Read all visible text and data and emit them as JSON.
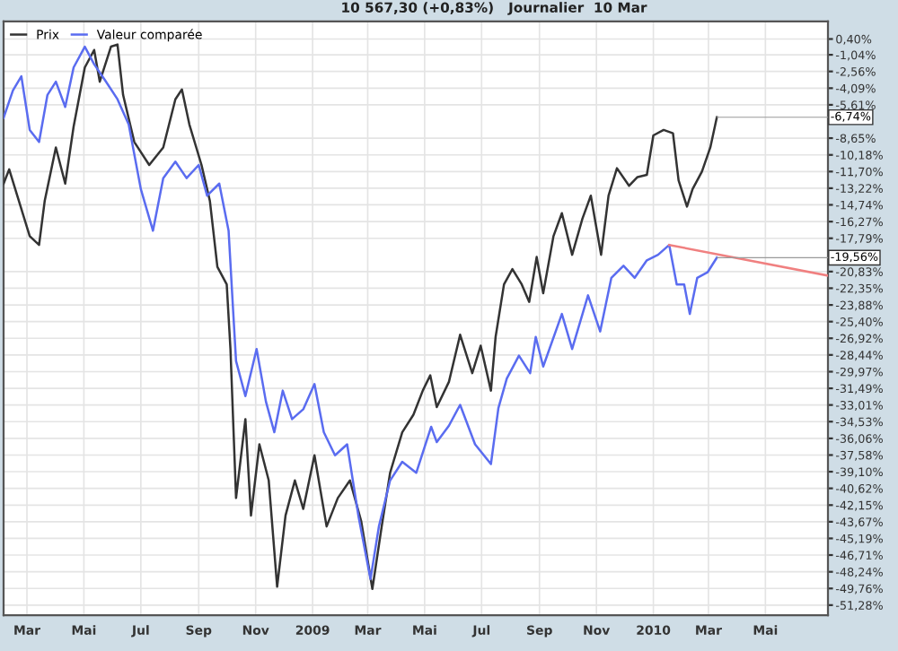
{
  "chart_data": {
    "type": "line",
    "title": "10 567,30 (+0,83%)   Journalier  10 Mar",
    "xlim": [
      "2008-02-05",
      "2010-07-07"
    ],
    "xticks": [
      {
        "value": "2008-03-01",
        "label": "Mar"
      },
      {
        "value": "2008-05-01",
        "label": "Mai"
      },
      {
        "value": "2008-07-01",
        "label": "Jul"
      },
      {
        "value": "2008-09-01",
        "label": "Sep"
      },
      {
        "value": "2008-11-01",
        "label": "Nov"
      },
      {
        "value": "2009-01-01",
        "label": "2009"
      },
      {
        "value": "2009-03-01",
        "label": "Mar"
      },
      {
        "value": "2009-05-01",
        "label": "Mai"
      },
      {
        "value": "2009-07-01",
        "label": "Jul"
      },
      {
        "value": "2009-09-01",
        "label": "Sep"
      },
      {
        "value": "2009-11-01",
        "label": "Nov"
      },
      {
        "value": "2010-01-01",
        "label": "2010"
      },
      {
        "value": "2010-03-01",
        "label": "Mar"
      },
      {
        "value": "2010-05-01",
        "label": "Mai"
      }
    ],
    "ylim": [
      -52.2,
      2.0
    ],
    "yticks": [
      {
        "value": 0.4,
        "label": "0,40%"
      },
      {
        "value": -1.04,
        "label": "-1,04%"
      },
      {
        "value": -2.56,
        "label": "-2,56%"
      },
      {
        "value": -4.09,
        "label": "-4,09%"
      },
      {
        "value": -5.61,
        "label": "-5,61%"
      },
      {
        "value": -8.65,
        "label": "-8,65%"
      },
      {
        "value": -10.18,
        "label": "-10,18%"
      },
      {
        "value": -11.7,
        "label": "-11,70%"
      },
      {
        "value": -13.22,
        "label": "-13,22%"
      },
      {
        "value": -14.74,
        "label": "-14,74%"
      },
      {
        "value": -16.27,
        "label": "-16,27%"
      },
      {
        "value": -17.79,
        "label": "-17,79%"
      },
      {
        "value": -20.83,
        "label": "-20,83%"
      },
      {
        "value": -22.35,
        "label": "-22,35%"
      },
      {
        "value": -23.88,
        "label": "-23,88%"
      },
      {
        "value": -25.4,
        "label": "-25,40%"
      },
      {
        "value": -26.92,
        "label": "-26,92%"
      },
      {
        "value": -28.44,
        "label": "-28,44%"
      },
      {
        "value": -29.97,
        "label": "-29,97%"
      },
      {
        "value": -31.49,
        "label": "-31,49%"
      },
      {
        "value": -33.01,
        "label": "-33,01%"
      },
      {
        "value": -34.53,
        "label": "-34,53%"
      },
      {
        "value": -36.06,
        "label": "-36,06%"
      },
      {
        "value": -37.58,
        "label": "-37,58%"
      },
      {
        "value": -39.1,
        "label": "-39,10%"
      },
      {
        "value": -40.62,
        "label": "-40,62%"
      },
      {
        "value": -42.15,
        "label": "-42,15%"
      },
      {
        "value": -43.67,
        "label": "-43,67%"
      },
      {
        "value": -45.19,
        "label": "-45,19%"
      },
      {
        "value": -46.71,
        "label": "-46,71%"
      },
      {
        "value": -48.24,
        "label": "-48,24%"
      },
      {
        "value": -49.76,
        "label": "-49,76%"
      },
      {
        "value": -51.28,
        "label": "-51,28%"
      }
    ],
    "grid": true,
    "legend": "top left",
    "marker": "none",
    "line_style": "solid",
    "annotations": [
      {
        "text": "-6,74%",
        "x": "2010-03-10",
        "y": -6.74
      },
      {
        "text": "-19,56%",
        "x": "2010-03-10",
        "y": -19.56
      }
    ],
    "series": [
      {
        "name": "Prix",
        "color": "#333333",
        "x": [
          "2008-02-05",
          "2008-02-11",
          "2008-03-04",
          "2008-03-14",
          "2008-03-20",
          "2008-04-01",
          "2008-04-11",
          "2008-04-20",
          "2008-05-02",
          "2008-05-12",
          "2008-05-18",
          "2008-05-30",
          "2008-06-06",
          "2008-06-12",
          "2008-06-24",
          "2008-07-10",
          "2008-07-25",
          "2008-08-07",
          "2008-08-14",
          "2008-08-22",
          "2008-09-04",
          "2008-09-13",
          "2008-09-21",
          "2008-10-01",
          "2008-10-05",
          "2008-10-11",
          "2008-10-21",
          "2008-10-27",
          "2008-11-05",
          "2008-11-15",
          "2008-11-24",
          "2008-12-03",
          "2008-12-13",
          "2008-12-22",
          "2009-01-03",
          "2009-01-16",
          "2009-01-28",
          "2009-02-10",
          "2009-02-22",
          "2009-03-06",
          "2009-03-16",
          "2009-03-25",
          "2009-04-07",
          "2009-04-19",
          "2009-04-29",
          "2009-05-07",
          "2009-05-14",
          "2009-05-27",
          "2009-06-08",
          "2009-06-21",
          "2009-06-30",
          "2009-07-11",
          "2009-07-16",
          "2009-07-25",
          "2009-08-03",
          "2009-08-13",
          "2009-08-21",
          "2009-08-29",
          "2009-09-05",
          "2009-09-16",
          "2009-09-25",
          "2009-10-06",
          "2009-10-17",
          "2009-10-26",
          "2009-11-06",
          "2009-11-14",
          "2009-11-23",
          "2009-12-06",
          "2009-12-15",
          "2009-12-25",
          "2010-01-01",
          "2010-01-12",
          "2010-01-22",
          "2010-01-28",
          "2010-02-06",
          "2010-02-12",
          "2010-02-22",
          "2010-03-03",
          "2010-03-10"
        ],
        "values": [
          -12.8,
          -11.5,
          -17.6,
          -18.4,
          -14.4,
          -9.5,
          -12.8,
          -7.6,
          -2.2,
          -0.6,
          -3.5,
          -0.3,
          -0.1,
          -4.7,
          -9.0,
          -11.1,
          -9.5,
          -5.1,
          -4.2,
          -7.4,
          -11.1,
          -14.4,
          -20.4,
          -22.0,
          -27.9,
          -41.5,
          -34.3,
          -43.1,
          -36.6,
          -39.9,
          -49.6,
          -43.1,
          -39.9,
          -42.5,
          -37.6,
          -44.1,
          -41.5,
          -39.9,
          -43.6,
          -49.8,
          -44.1,
          -39.2,
          -35.5,
          -33.9,
          -31.7,
          -30.3,
          -33.2,
          -30.9,
          -26.6,
          -30.1,
          -27.6,
          -31.7,
          -26.8,
          -22.0,
          -20.6,
          -22.0,
          -23.6,
          -19.5,
          -22.8,
          -17.6,
          -15.5,
          -19.3,
          -16.0,
          -13.9,
          -19.3,
          -13.9,
          -11.4,
          -13.0,
          -12.2,
          -12.0,
          -8.4,
          -7.9,
          -8.2,
          -12.5,
          -14.9,
          -13.3,
          -11.7,
          -9.5,
          -6.74
        ]
      },
      {
        "name": "Valeur comparée",
        "color": "#5a6cf0",
        "x": [
          "2008-02-05",
          "2008-02-15",
          "2008-02-24",
          "2008-03-04",
          "2008-03-14",
          "2008-03-23",
          "2008-04-01",
          "2008-04-11",
          "2008-04-20",
          "2008-05-02",
          "2008-05-12",
          "2008-05-24",
          "2008-06-06",
          "2008-06-18",
          "2008-07-01",
          "2008-07-14",
          "2008-07-25",
          "2008-08-07",
          "2008-08-19",
          "2008-09-01",
          "2008-09-10",
          "2008-09-23",
          "2008-10-03",
          "2008-10-08",
          "2008-10-11",
          "2008-10-21",
          "2008-11-02",
          "2008-11-12",
          "2008-11-21",
          "2008-11-30",
          "2008-12-10",
          "2008-12-22",
          "2009-01-03",
          "2009-01-13",
          "2009-01-25",
          "2009-02-07",
          "2009-02-19",
          "2009-03-04",
          "2009-03-13",
          "2009-03-25",
          "2009-04-07",
          "2009-04-22",
          "2009-05-08",
          "2009-05-14",
          "2009-05-27",
          "2009-06-08",
          "2009-06-24",
          "2009-07-11",
          "2009-07-19",
          "2009-07-28",
          "2009-08-10",
          "2009-08-22",
          "2009-08-28",
          "2009-09-05",
          "2009-09-25",
          "2009-10-06",
          "2009-10-23",
          "2009-11-05",
          "2009-11-17",
          "2009-11-30",
          "2009-12-12",
          "2009-12-25",
          "2010-01-06",
          "2010-01-18",
          "2010-01-26",
          "2010-02-03",
          "2010-02-09",
          "2010-02-17",
          "2010-02-28",
          "2010-03-10"
        ],
        "values": [
          -6.8,
          -4.3,
          -3.0,
          -7.9,
          -9.0,
          -4.7,
          -3.5,
          -5.8,
          -2.2,
          -0.3,
          -1.9,
          -3.4,
          -5.1,
          -7.4,
          -13.3,
          -17.1,
          -12.3,
          -10.8,
          -12.3,
          -11.1,
          -13.9,
          -12.8,
          -17.1,
          -24.6,
          -29.0,
          -32.2,
          -27.9,
          -32.7,
          -35.5,
          -31.7,
          -34.3,
          -33.4,
          -31.1,
          -35.5,
          -37.6,
          -36.6,
          -43.1,
          -48.9,
          -44.1,
          -39.9,
          -38.2,
          -39.2,
          -35.0,
          -36.4,
          -34.9,
          -33.0,
          -36.6,
          -38.4,
          -33.3,
          -30.6,
          -28.5,
          -30.1,
          -26.8,
          -29.5,
          -24.7,
          -27.9,
          -23.0,
          -26.3,
          -21.4,
          -20.3,
          -21.4,
          -19.8,
          -19.3,
          -18.4,
          -22.0,
          -22.0,
          -24.7,
          -21.4,
          -20.9,
          -19.56
        ]
      },
      {
        "type": "line",
        "color": "#f08080",
        "x": [
          "2010-01-18",
          "2010-07-07"
        ],
        "values": [
          -18.4,
          -21.2
        ]
      }
    ]
  }
}
